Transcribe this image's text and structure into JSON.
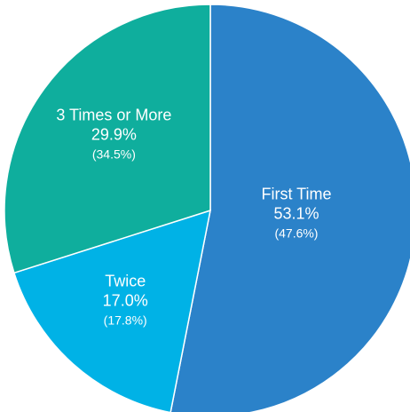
{
  "chart_data": {
    "type": "pie",
    "start_angle_deg": 0,
    "direction": "clockwise",
    "slices": [
      {
        "name": "First Time",
        "value": 53.1,
        "value_label": "53.1%",
        "secondary_label": "(47.6%)",
        "color": "#2b82c9"
      },
      {
        "name": "Twice",
        "value": 17.0,
        "value_label": "17.0%",
        "secondary_label": "(17.8%)",
        "color": "#00b2e6"
      },
      {
        "name": "3 Times or More",
        "value": 29.9,
        "value_label": "29.9%",
        "secondary_label": "(34.5%)",
        "color": "#0fae9d"
      }
    ],
    "slice_border_color": "#ffffff"
  }
}
